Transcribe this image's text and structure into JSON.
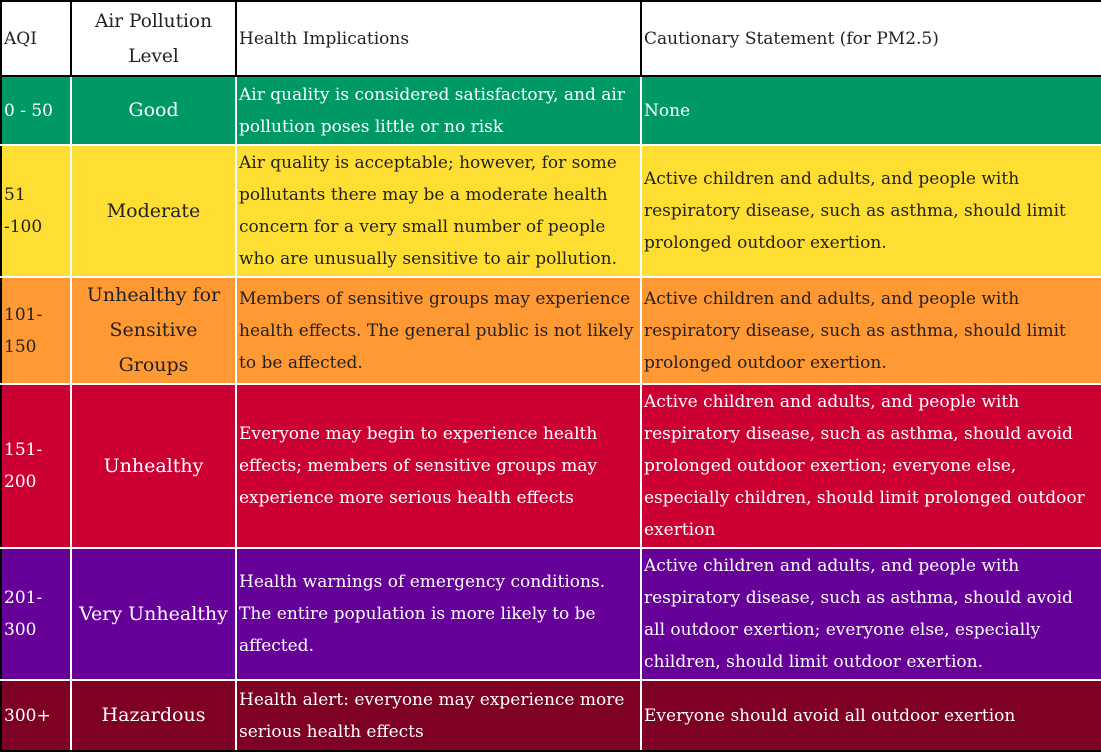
{
  "headers": {
    "aqi": "AQI",
    "level": "Air Pollution Level",
    "health": "Health Implications",
    "caution": "Cautionary Statement (for PM2.5)"
  },
  "rows": [
    {
      "aqi": "0 - 50",
      "level": "Good",
      "health": "Air quality is considered satisfactory, and air pollution poses little or no risk",
      "caution": "None",
      "color": "#009966",
      "text_color": "#ffffff"
    },
    {
      "aqi": "51 -100",
      "level": "Moderate",
      "health": "Air quality is acceptable; however, for some pollutants there may be a moderate health concern for a very small number of people who are unusually sensitive to air pollution.",
      "caution": "Active children and adults, and people with respiratory disease, such as asthma, should limit prolonged outdoor exertion.",
      "color": "#ffde33",
      "text_color": "#222222"
    },
    {
      "aqi": "101-150",
      "level": "Unhealthy for Sensitive Groups",
      "health": "Members of sensitive groups may experience health effects. The general public is not likely to be affected.",
      "caution": "Active children and adults, and people with respiratory disease, such as asthma, should limit prolonged outdoor exertion.",
      "color": "#ff9933",
      "text_color": "#222222"
    },
    {
      "aqi": "151-200",
      "level": "Unhealthy",
      "health": "Everyone may begin to experience health effects; members of sensitive groups may experience more serious health effects",
      "caution": "Active children and adults, and people with respiratory disease, such as asthma, should avoid prolonged outdoor exertion; everyone else, especially children, should limit prolonged outdoor exertion",
      "color": "#cc0033",
      "text_color": "#ffffff"
    },
    {
      "aqi": "201-300",
      "level": "Very Unhealthy",
      "health": "Health warnings of emergency conditions. The entire population is more likely to be affected.",
      "caution": "Active children and adults, and people with respiratory disease, such as asthma, should avoid all outdoor exertion; everyone else, especially children, should limit outdoor exertion.",
      "color": "#660099",
      "text_color": "#ffffff"
    },
    {
      "aqi": "300+",
      "level": "Hazardous",
      "health": "Health alert: everyone may experience more serious health effects",
      "caution": "Everyone should avoid all outdoor exertion",
      "color": "#7e0023",
      "text_color": "#ffffff"
    }
  ]
}
